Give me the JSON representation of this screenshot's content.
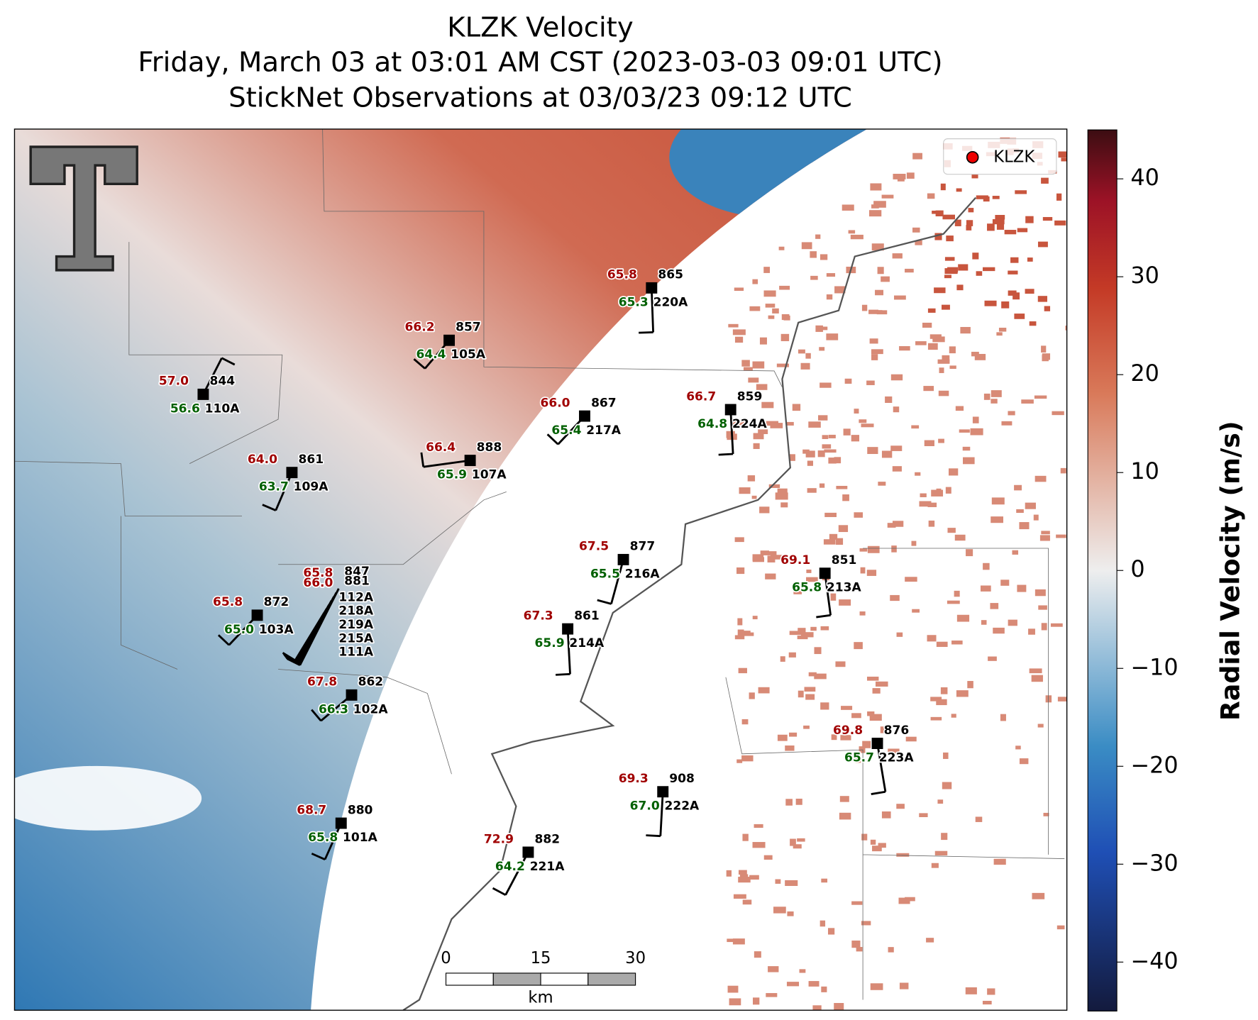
{
  "header": {
    "title": "KLZK Velocity",
    "subtitle": "Friday, March 03 at 03:01 AM CST (2023-03-03 09:01 UTC)",
    "observations": "StickNet Observations at 03/03/23 09:12 UTC"
  },
  "stations": [
    {
      "temperature": "57.0",
      "station": "844",
      "dewpoint": "56.6",
      "probe": "110A"
    },
    {
      "temperature": "66.2",
      "station": "857",
      "dewpoint": "64.4",
      "probe": "105A"
    },
    {
      "temperature": "65.8",
      "station": "865",
      "dewpoint": "65.3",
      "probe": "220A"
    },
    {
      "temperature": "66.0",
      "station": "867",
      "dewpoint": "65.4",
      "probe": "217A"
    },
    {
      "temperature": "66.7",
      "station": "859",
      "dewpoint": "64.8",
      "probe": "224A"
    },
    {
      "temperature": "64.0",
      "station": "861",
      "dewpoint": "63.7",
      "probe": "109A"
    },
    {
      "temperature": "66.4",
      "station": "888",
      "dewpoint": "65.9",
      "probe": "107A"
    },
    {
      "temperature": "67.5",
      "station": "877",
      "dewpoint": "65.5",
      "probe": "216A"
    },
    {
      "temperature": "69.1",
      "station": "851",
      "dewpoint": "65.8",
      "probe": "213A"
    },
    {
      "temperature": "65.8",
      "station": "872",
      "dewpoint": "65.0",
      "probe": "103A"
    },
    {
      "temperature": "67.3",
      "station": "861",
      "dewpoint": "65.9",
      "probe": "214A"
    },
    {
      "temperature": "67.8",
      "station": "862",
      "dewpoint": "66.3",
      "probe": "102A"
    },
    {
      "temperature": "69.8",
      "station": "876",
      "dewpoint": "65.7",
      "probe": "223A"
    },
    {
      "temperature": "69.3",
      "station": "908",
      "dewpoint": "67.0",
      "probe": "222A"
    },
    {
      "temperature": "68.7",
      "station": "880",
      "dewpoint": "65.8",
      "probe": "101A"
    },
    {
      "temperature": "72.9",
      "station": "882",
      "dewpoint": "64.2",
      "probe": "221A"
    }
  ],
  "cluster": {
    "temperatures": [
      "65.8",
      "66.0"
    ],
    "stations": [
      "847",
      "881"
    ],
    "probes": [
      "112A",
      "218A",
      "219A",
      "215A",
      "111A"
    ]
  },
  "legend": {
    "label": "KLZK"
  },
  "colorbar": {
    "label": "Radial Velocity (m/s)",
    "range": [
      -45,
      45
    ],
    "ticks": [
      40,
      30,
      20,
      10,
      0,
      {
        "value": -10,
        "label": "−10"
      },
      {
        "value": -20,
        "label": "−20"
      },
      {
        "value": -30,
        "label": "−30"
      },
      {
        "value": -40,
        "label": "−40"
      }
    ]
  },
  "scale_bar": {
    "ticks": [
      0,
      15,
      30
    ],
    "unit": "km"
  }
}
